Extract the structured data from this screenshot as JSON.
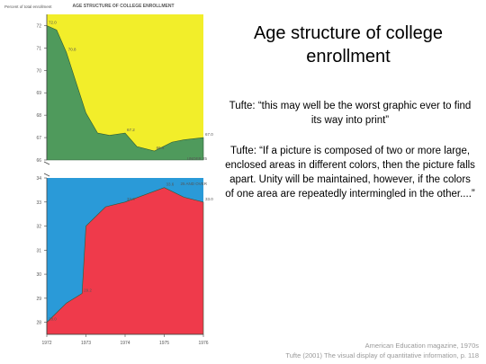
{
  "slide": {
    "title": "Age structure of college enrollment",
    "quote1": "Tufte: “this may well be the worst graphic ever to find its way into print”",
    "quote2": "Tufte: “If a picture is composed of two or more large, enclosed areas in different colors, then the picture falls apart. Unity will be maintained, however, if the colors of one area are repeatedly intermingled in the other....”",
    "source": "American Education magazine, 1970s",
    "citation": "Tufte (2001) The visual display of quantitative information, p. 118"
  },
  "chart_data": [
    {
      "type": "area",
      "title": "AGE STRUCTURE OF COLLEGE ENROLLMENT",
      "ylabel": "Percent of total enrollment",
      "x": [
        1972,
        1973,
        1974,
        1975,
        1976
      ],
      "x_ticks": [
        "1972",
        "1973",
        "1974",
        "1975",
        "1976"
      ],
      "ylim": [
        66,
        72.5
      ],
      "y_ticks": [
        66,
        67,
        68,
        69,
        70,
        71,
        72
      ],
      "series": [
        {
          "name": "UNDER 25",
          "color": "#4f9a5c",
          "points": [
            [
              1972,
              72.0
            ],
            [
              1972.25,
              71.8
            ],
            [
              1972.5,
              70.8
            ],
            [
              1973.0,
              68.1
            ],
            [
              1973.3,
              67.2
            ],
            [
              1973.6,
              67.1
            ],
            [
              1974.0,
              67.2
            ],
            [
              1974.3,
              66.6
            ],
            [
              1974.75,
              66.4
            ],
            [
              1975.2,
              66.8
            ],
            [
              1975.5,
              66.9
            ],
            [
              1976,
              67.0
            ]
          ],
          "data_labels": [
            {
              "x": 1972,
              "y": 72.0,
              "text": "72.0"
            },
            {
              "x": 1972.5,
              "y": 70.8,
              "text": "70.8"
            },
            {
              "x": 1974.0,
              "y": 67.2,
              "text": "67.2"
            },
            {
              "x": 1974.75,
              "y": 66.4,
              "text": "66.4"
            },
            {
              "x": 1976,
              "y": 67.0,
              "text": "67.0"
            }
          ]
        }
      ],
      "fill_above_color": "#f2ee2a",
      "legend": "bottom-right"
    },
    {
      "type": "area",
      "x": [
        1972,
        1973,
        1974,
        1975,
        1976
      ],
      "x_ticks": [
        "1972",
        "1973",
        "1974",
        "1975",
        "1976"
      ],
      "ylim": [
        27.5,
        34
      ],
      "y_ticks": [
        28,
        29,
        30,
        31,
        32,
        33,
        34
      ],
      "series": [
        {
          "name": "25 AND OVER",
          "color": "#ef3a4b",
          "points": [
            [
              1972,
              28.0
            ],
            [
              1972.5,
              28.8
            ],
            [
              1972.9,
              29.2
            ],
            [
              1973.0,
              32.0
            ],
            [
              1973.5,
              32.8
            ],
            [
              1974.0,
              33.0
            ],
            [
              1975.0,
              33.6
            ],
            [
              1975.5,
              33.2
            ],
            [
              1976,
              33.0
            ]
          ],
          "data_labels": [
            {
              "x": 1972,
              "y": 28.0,
              "text": "28.0"
            },
            {
              "x": 1972.9,
              "y": 29.2,
              "text": "29.2"
            },
            {
              "x": 1974.0,
              "y": 33.0,
              "text": "33.0"
            },
            {
              "x": 1975.0,
              "y": 33.6,
              "text": "33.6"
            },
            {
              "x": 1976,
              "y": 33.0,
              "text": "33.0"
            }
          ]
        }
      ],
      "fill_above_color": "#2a9ad8",
      "legend": "top-right"
    }
  ]
}
